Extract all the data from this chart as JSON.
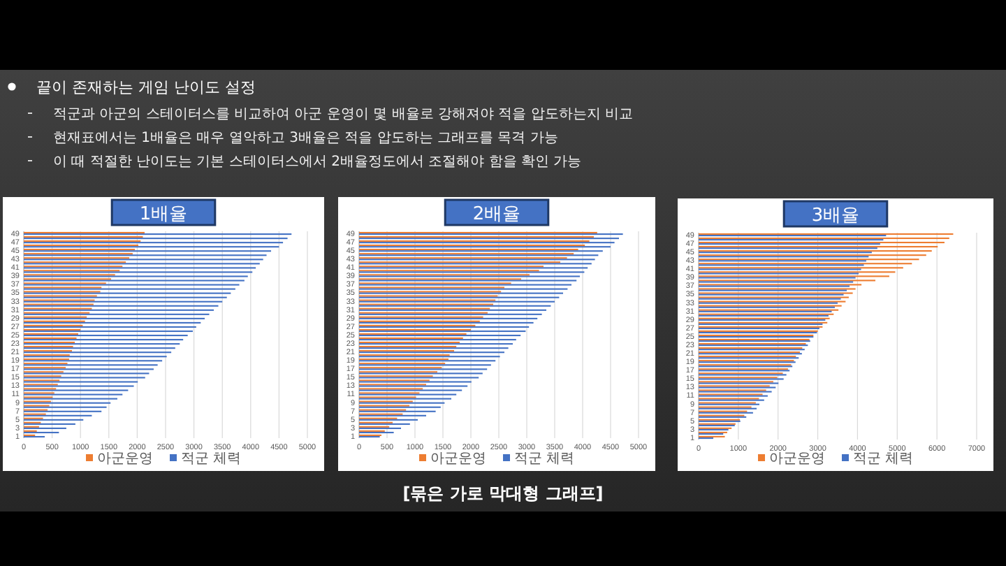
{
  "chart_data": [
    {
      "type": "other",
      "title": "끝이 존재하는 게임 난이도 설정",
      "annotations": [
        "적군과 아군의 스테이터스를 비교하여 아군 운영이 몇 배율로 강해져야 적을 압도하는지 비교",
        "현재표에서는 1배율은 매우 열악하고 3배율은 적을 압도하는 그래프를 목격 가능",
        "이 때 적절한 난이도는 기본 스테이터스에서 2배율정도에서 조절해야 함을 확인 가능"
      ]
    },
    {
      "type": "bar",
      "orientation": "horizontal",
      "title": "1배율",
      "categories": [
        "49",
        null,
        "47",
        null,
        "45",
        null,
        "43",
        null,
        "41",
        null,
        "39",
        null,
        "37",
        null,
        "35",
        null,
        "33",
        null,
        "31",
        null,
        "29",
        null,
        "27",
        null,
        "25",
        null,
        "23",
        null,
        "21",
        null,
        "19",
        null,
        "17",
        null,
        "15",
        null,
        "13",
        null,
        "11",
        null,
        "9",
        null,
        "7",
        null,
        "5",
        null,
        "3",
        null,
        "1"
      ],
      "series": [
        {
          "name": "아군운영",
          "color": "#ed7d31",
          "values": [
            2130,
            2100,
            2060,
            2020,
            1960,
            1920,
            1860,
            1800,
            1740,
            1690,
            1610,
            1540,
            1450,
            1370,
            1350,
            1290,
            1250,
            1230,
            1200,
            1160,
            1110,
            1080,
            1040,
            1000,
            960,
            930,
            900,
            870,
            850,
            810,
            800,
            770,
            740,
            700,
            660,
            630,
            600,
            570,
            540,
            510,
            480,
            450,
            420,
            390,
            340,
            300,
            270,
            230,
            200
          ]
        },
        {
          "name": "적군 체력",
          "color": "#4472c4",
          "values": [
            4720,
            4650,
            4570,
            4500,
            4360,
            4280,
            4220,
            4160,
            4090,
            4030,
            3950,
            3890,
            3800,
            3730,
            3650,
            3580,
            3500,
            3430,
            3350,
            3270,
            3190,
            3120,
            3040,
            2980,
            2890,
            2810,
            2750,
            2670,
            2600,
            2520,
            2440,
            2360,
            2290,
            2210,
            2140,
            2010,
            1940,
            1840,
            1740,
            1650,
            1530,
            1460,
            1370,
            1200,
            1050,
            910,
            750,
            620,
            370
          ]
        }
      ],
      "xlim": [
        0,
        5000
      ],
      "xticks": [
        0,
        500,
        1000,
        1500,
        2000,
        2500,
        3000,
        3500,
        4000,
        4500,
        5000
      ],
      "grid": "x",
      "legend": "bottom"
    },
    {
      "type": "bar",
      "orientation": "horizontal",
      "title": "2배율",
      "categories": [
        "49",
        null,
        "47",
        null,
        "45",
        null,
        "43",
        null,
        "41",
        null,
        "39",
        null,
        "37",
        null,
        "35",
        null,
        "33",
        null,
        "31",
        null,
        "29",
        null,
        "27",
        null,
        "25",
        null,
        "23",
        null,
        "21",
        null,
        "19",
        null,
        "17",
        null,
        "15",
        null,
        "13",
        null,
        "11",
        null,
        "9",
        null,
        "7",
        null,
        "5",
        null,
        "3",
        null,
        "1"
      ],
      "series": [
        {
          "name": "아군운영",
          "color": "#ed7d31",
          "values": [
            4260,
            4200,
            4120,
            4040,
            3920,
            3840,
            3720,
            3600,
            3300,
            3220,
            3050,
            2900,
            2720,
            2600,
            2540,
            2480,
            2440,
            2400,
            2340,
            2300,
            2220,
            2160,
            2080,
            2000,
            1920,
            1860,
            1800,
            1740,
            1700,
            1620,
            1600,
            1540,
            1480,
            1400,
            1320,
            1260,
            1200,
            1140,
            1080,
            1020,
            960,
            900,
            840,
            780,
            680,
            600,
            540,
            460,
            400
          ]
        },
        {
          "name": "적군 체력",
          "color": "#4472c4",
          "values": [
            4720,
            4650,
            4570,
            4500,
            4360,
            4280,
            4220,
            4160,
            4090,
            4030,
            3950,
            3890,
            3800,
            3730,
            3650,
            3580,
            3500,
            3430,
            3350,
            3270,
            3190,
            3120,
            3040,
            2980,
            2890,
            2810,
            2750,
            2670,
            2600,
            2520,
            2440,
            2360,
            2290,
            2210,
            2140,
            2010,
            1940,
            1840,
            1740,
            1650,
            1530,
            1460,
            1370,
            1200,
            1050,
            910,
            750,
            620,
            370
          ]
        }
      ],
      "xlim": [
        0,
        5000
      ],
      "xticks": [
        0,
        500,
        1000,
        1500,
        2000,
        2500,
        3000,
        3500,
        4000,
        4500,
        5000
      ],
      "grid": "x",
      "legend": "bottom"
    },
    {
      "type": "bar",
      "orientation": "horizontal",
      "title": "3배율",
      "categories": [
        "49",
        null,
        "47",
        null,
        "45",
        null,
        "43",
        null,
        "41",
        null,
        "39",
        null,
        "37",
        null,
        "35",
        null,
        "33",
        null,
        "31",
        null,
        "29",
        null,
        "27",
        null,
        "25",
        null,
        "23",
        null,
        "21",
        null,
        "19",
        null,
        "17",
        null,
        "15",
        null,
        "13",
        null,
        "11",
        null,
        "9",
        null,
        "7",
        null,
        "5",
        null,
        "3",
        null,
        "1"
      ],
      "series": [
        {
          "name": "아군운영",
          "color": "#ed7d31",
          "values": [
            6410,
            6310,
            6190,
            6020,
            5870,
            5730,
            5550,
            5370,
            5150,
            4950,
            4800,
            4450,
            4100,
            3950,
            3880,
            3780,
            3700,
            3600,
            3520,
            3400,
            3300,
            3240,
            3120,
            3000,
            2890,
            2790,
            2700,
            2610,
            2550,
            2450,
            2400,
            2330,
            2250,
            2120,
            1980,
            1880,
            1790,
            1700,
            1610,
            1520,
            1440,
            1330,
            1220,
            1150,
            1040,
            930,
            830,
            720,
            660
          ]
        },
        {
          "name": "적군 체력",
          "color": "#4472c4",
          "values": [
            4720,
            4650,
            4570,
            4500,
            4360,
            4280,
            4220,
            4160,
            4090,
            4030,
            3950,
            3890,
            3800,
            3730,
            3650,
            3580,
            3500,
            3430,
            3350,
            3270,
            3190,
            3120,
            3040,
            2980,
            2890,
            2810,
            2750,
            2670,
            2600,
            2520,
            2440,
            2360,
            2290,
            2210,
            2140,
            2010,
            1940,
            1840,
            1740,
            1650,
            1530,
            1460,
            1370,
            1200,
            1050,
            910,
            750,
            620,
            370
          ]
        }
      ],
      "xlim": [
        0,
        7000
      ],
      "xticks": [
        0,
        1000,
        2000,
        3000,
        4000,
        5000,
        6000,
        7000
      ],
      "grid": "x",
      "legend": "bottom"
    },
    {
      "type": "other",
      "annotations": [
        "[묶은 가로 막대형 그래프]"
      ]
    }
  ]
}
